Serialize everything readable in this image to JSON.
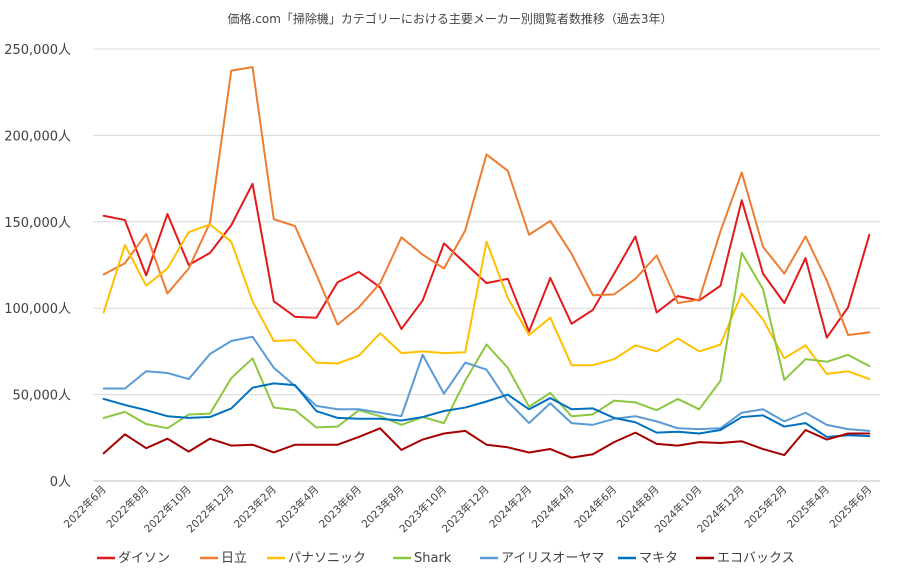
{
  "chart_data": {
    "type": "line",
    "title": "価格.com「掃除機」カテゴリーにおける主要メーカー別閲覧者数推移（過去3年）",
    "y_unit": "人",
    "ylim": [
      0,
      250000
    ],
    "y_ticks": [
      0,
      50000,
      100000,
      150000,
      200000,
      250000
    ],
    "y_tick_labels": [
      "0人",
      "50,000人",
      "100,000人",
      "150,000人",
      "200,000人",
      "250,000人"
    ],
    "grid": "horizontal",
    "legend_position": "bottom",
    "x": [
      "2022-06",
      "2022-07",
      "2022-08",
      "2022-09",
      "2022-10",
      "2022-11",
      "2022-12",
      "2023-01",
      "2023-02",
      "2023-03",
      "2023-04",
      "2023-05",
      "2023-06",
      "2023-07",
      "2023-08",
      "2023-09",
      "2023-10",
      "2023-11",
      "2023-12",
      "2024-01",
      "2024-02",
      "2024-03",
      "2024-04",
      "2024-05",
      "2024-06",
      "2024-07",
      "2024-08",
      "2024-09",
      "2024-10",
      "2024-11",
      "2024-12",
      "2025-01",
      "2025-02",
      "2025-03",
      "2025-04",
      "2025-05",
      "2025-06"
    ],
    "x_tick_labels": [
      {
        "index": 0,
        "label": "2022年6月"
      },
      {
        "index": 2,
        "label": "2022年8月"
      },
      {
        "index": 4,
        "label": "2022年10月"
      },
      {
        "index": 6,
        "label": "2022年12月"
      },
      {
        "index": 8,
        "label": "2023年2月"
      },
      {
        "index": 10,
        "label": "2023年4月"
      },
      {
        "index": 12,
        "label": "2023年6月"
      },
      {
        "index": 14,
        "label": "2023年8月"
      },
      {
        "index": 16,
        "label": "2023年10月"
      },
      {
        "index": 18,
        "label": "2023年12月"
      },
      {
        "index": 20,
        "label": "2024年2月"
      },
      {
        "index": 22,
        "label": "2024年4月"
      },
      {
        "index": 24,
        "label": "2024年6月"
      },
      {
        "index": 26,
        "label": "2024年8月"
      },
      {
        "index": 28,
        "label": "2024年10月"
      },
      {
        "index": 30,
        "label": "2024年12月"
      },
      {
        "index": 32,
        "label": "2025年2月"
      },
      {
        "index": 34,
        "label": "2025年4月"
      },
      {
        "index": 36,
        "label": "2025年6月"
      }
    ],
    "series": [
      {
        "name": "ダイソン",
        "color": "#e31a1c",
        "values": [
          153500,
          151000,
          119000,
          154500,
          125000,
          132000,
          148000,
          172000,
          104000,
          95000,
          94500,
          115000,
          121000,
          112000,
          88000,
          104500,
          137500,
          126000,
          114500,
          117000,
          86500,
          117500,
          91000,
          99000,
          120000,
          141500,
          97500,
          107000,
          104500,
          113000,
          162500,
          120000,
          103000,
          129000,
          83000,
          100500,
          142500
        ]
      },
      {
        "name": "日立",
        "color": "#ed7d31",
        "values": [
          119500,
          126000,
          143000,
          108500,
          123000,
          149500,
          237500,
          239500,
          151500,
          147500,
          119500,
          90500,
          100500,
          114500,
          141000,
          131000,
          123000,
          145000,
          189000,
          179500,
          142500,
          150500,
          131500,
          107500,
          108000,
          117000,
          130500,
          103000,
          105000,
          144500,
          178500,
          135500,
          120000,
          141500,
          116000,
          84500,
          86000
        ]
      },
      {
        "name": "パナソニック",
        "color": "#ffc000",
        "values": [
          97500,
          136500,
          113000,
          123000,
          144000,
          148500,
          138500,
          104000,
          81000,
          81500,
          68500,
          68000,
          72500,
          85500,
          74000,
          75000,
          74000,
          74500,
          138500,
          106000,
          84500,
          94500,
          67000,
          67000,
          70500,
          78500,
          75000,
          82500,
          75000,
          79000,
          108500,
          93500,
          71000,
          78500,
          62000,
          63500,
          59000
        ]
      },
      {
        "name": "Shark",
        "color": "#8dc63f",
        "values": [
          36500,
          40000,
          33000,
          30500,
          38500,
          39000,
          59500,
          71000,
          42500,
          41000,
          31000,
          31500,
          41000,
          37500,
          32500,
          37000,
          33500,
          58000,
          79000,
          65500,
          43000,
          51000,
          37500,
          38500,
          46500,
          45500,
          41000,
          47500,
          41500,
          58000,
          132000,
          111000,
          58500,
          70500,
          69000,
          73000,
          66500
        ]
      },
      {
        "name": "アイリスオーヤマ",
        "color": "#5b9bd5",
        "values": [
          53500,
          53500,
          63500,
          62500,
          59000,
          73500,
          81000,
          83500,
          65500,
          55000,
          43500,
          41500,
          41500,
          39500,
          37500,
          73000,
          50500,
          68500,
          64500,
          46000,
          33500,
          45000,
          33500,
          32500,
          36000,
          37500,
          34500,
          30500,
          30000,
          30500,
          39500,
          41500,
          34500,
          39500,
          32500,
          30000,
          29000
        ]
      },
      {
        "name": "マキタ",
        "color": "#0070c0",
        "values": [
          47500,
          44000,
          41000,
          37500,
          36500,
          37000,
          42000,
          54000,
          56500,
          55500,
          40500,
          36500,
          36000,
          36000,
          35000,
          37000,
          40500,
          42500,
          46000,
          50000,
          41500,
          48000,
          41500,
          42000,
          36500,
          34000,
          28000,
          28500,
          27500,
          29500,
          37000,
          38000,
          31500,
          33500,
          25500,
          26500,
          26000
        ]
      },
      {
        "name": "エコバックス",
        "color": "#a50000",
        "values": [
          16000,
          27000,
          19000,
          24500,
          17000,
          24500,
          20500,
          21000,
          16500,
          21000,
          21000,
          21000,
          25500,
          30500,
          18000,
          24000,
          27500,
          29000,
          21000,
          19500,
          16500,
          18500,
          13500,
          15500,
          22500,
          28000,
          21500,
          20500,
          22500,
          22000,
          23000,
          18500,
          15000,
          29500,
          24000,
          27500,
          27500
        ]
      }
    ]
  }
}
